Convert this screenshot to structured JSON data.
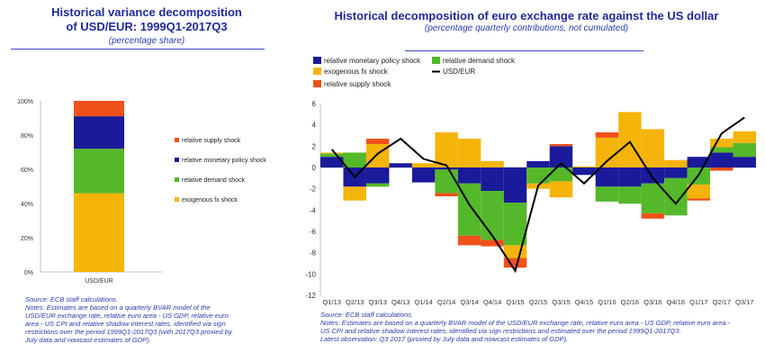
{
  "left_panel": {
    "title_line1": "Historical variance decomposition",
    "title_line2": "of USD/EUR: 1999Q1-2017Q3",
    "subtitle": "(percentage share)",
    "notes": [
      "Source: ECB staff calculations.",
      "Notes: Estimates are based on a quarterly BVAR model of the",
      "USD/EUR exchange rate, relative euro area - US GDP, relative euro",
      "area - US CPI and relative shadow interest rates, identified via sign",
      "restrictions over the period 1999Q1-2017Q3 (with 2017Q3 proxied by",
      "July data and nowcast estimates of GDP)."
    ]
  },
  "right_panel": {
    "title": "Historical decomposition of euro exchange rate against the US dollar",
    "subtitle": "(percentage quarterly contributions, not cumulated)",
    "notes": [
      "Source: ECB staff calculations.",
      "Notes: Estimates are based on a quarterly BVAR model of the USD/EUR exchange rate, relative euro area - US GDP, relative euro area -",
      "US CPI and relative shadow interest rates, identified via sign restrictions and estimated over the period 1999Q1-2017Q3.",
      "Latest observation: Q3 2017 (proxied by July data and nowcast estimates of GDP)."
    ]
  },
  "colors": {
    "supply": "#f0501a",
    "monetary": "#1a1a9a",
    "demand": "#55b82a",
    "fx": "#f5b40a",
    "line": "#000000"
  },
  "chart_data": [
    {
      "type": "bar",
      "stacked": true,
      "categories": [
        "USD/EUR"
      ],
      "series": [
        {
          "name": "exogenous fx shock",
          "key": "fx",
          "values": [
            46
          ]
        },
        {
          "name": "relative demand shock",
          "key": "demand",
          "values": [
            26
          ]
        },
        {
          "name": "relative monetary policy shock",
          "key": "monetary",
          "values": [
            19
          ]
        },
        {
          "name": "relative supply shock",
          "key": "supply",
          "values": [
            9
          ]
        }
      ],
      "legend_order": [
        "supply",
        "monetary",
        "demand",
        "fx"
      ],
      "ylim": [
        0,
        100
      ],
      "yticks": [
        "0%",
        "20%",
        "40%",
        "60%",
        "80%",
        "100%"
      ],
      "legend_position": "right"
    },
    {
      "type": "bar",
      "stacked": true,
      "categories": [
        "Q1/13",
        "Q2/13",
        "Q3/13",
        "Q4/13",
        "Q1/14",
        "Q2/14",
        "Q3/14",
        "Q4/14",
        "Q1/15",
        "Q2/15",
        "Q3/15",
        "Q4/15",
        "Q1/16",
        "Q2/16",
        "Q3/16",
        "Q4/16",
        "Q1/17",
        "Q2/17",
        "Q3/17"
      ],
      "series": [
        {
          "name": "relative monetary policy shock",
          "key": "monetary",
          "values": [
            1.0,
            -1.8,
            -1.5,
            0.4,
            -1.4,
            -0.2,
            -1.5,
            -2.2,
            -3.3,
            0.6,
            2.0,
            -0.7,
            -1.8,
            -1.8,
            -1.5,
            -1.0,
            1.0,
            1.4,
            1.0
          ]
        },
        {
          "name": "relative demand shock",
          "key": "demand",
          "values": [
            0.3,
            1.4,
            -0.3,
            0.0,
            0.0,
            -2.2,
            -4.9,
            -4.6,
            -4.0,
            -1.5,
            -1.3,
            0.0,
            -1.4,
            -1.6,
            -2.8,
            -3.5,
            -1.6,
            0.5,
            1.3
          ]
        },
        {
          "name": "exogenous fx shock",
          "key": "fx",
          "values": [
            0.1,
            -1.3,
            2.2,
            0.0,
            0.4,
            3.3,
            2.7,
            0.6,
            -1.2,
            -0.5,
            -1.5,
            0.1,
            2.8,
            5.2,
            3.6,
            0.7,
            -1.3,
            0.8,
            1.1
          ]
        },
        {
          "name": "relative supply shock",
          "key": "supply",
          "values": [
            0.0,
            0.0,
            0.5,
            0.0,
            0.0,
            -0.3,
            -0.9,
            -0.6,
            -0.9,
            0.0,
            0.2,
            0.0,
            0.5,
            0.0,
            -0.5,
            0.0,
            -0.2,
            -0.3,
            0.0
          ]
        }
      ],
      "line": {
        "name": "USD/EUR",
        "values": [
          1.7,
          -0.9,
          1.3,
          2.7,
          0.8,
          0.2,
          -3.5,
          -6.4,
          -9.7,
          -1.7,
          0.4,
          -1.5,
          0.6,
          2.4,
          -1.0,
          -3.4,
          -0.7,
          3.2,
          4.7
        ]
      },
      "legend_entries": [
        {
          "key": "monetary",
          "label": "relative monetary policy shock"
        },
        {
          "key": "demand",
          "label": "relative demand shock"
        },
        {
          "key": "fx",
          "label": "exogenous fx shock"
        },
        {
          "key": "line",
          "label": "USD/EUR"
        },
        {
          "key": "supply",
          "label": "relative supply shock"
        }
      ],
      "ylim": [
        -12,
        6
      ],
      "yticks": [
        -12,
        -10,
        -8,
        -6,
        -4,
        -2,
        0,
        2,
        4,
        6
      ],
      "grid": false,
      "legend_position": "top-left"
    }
  ]
}
